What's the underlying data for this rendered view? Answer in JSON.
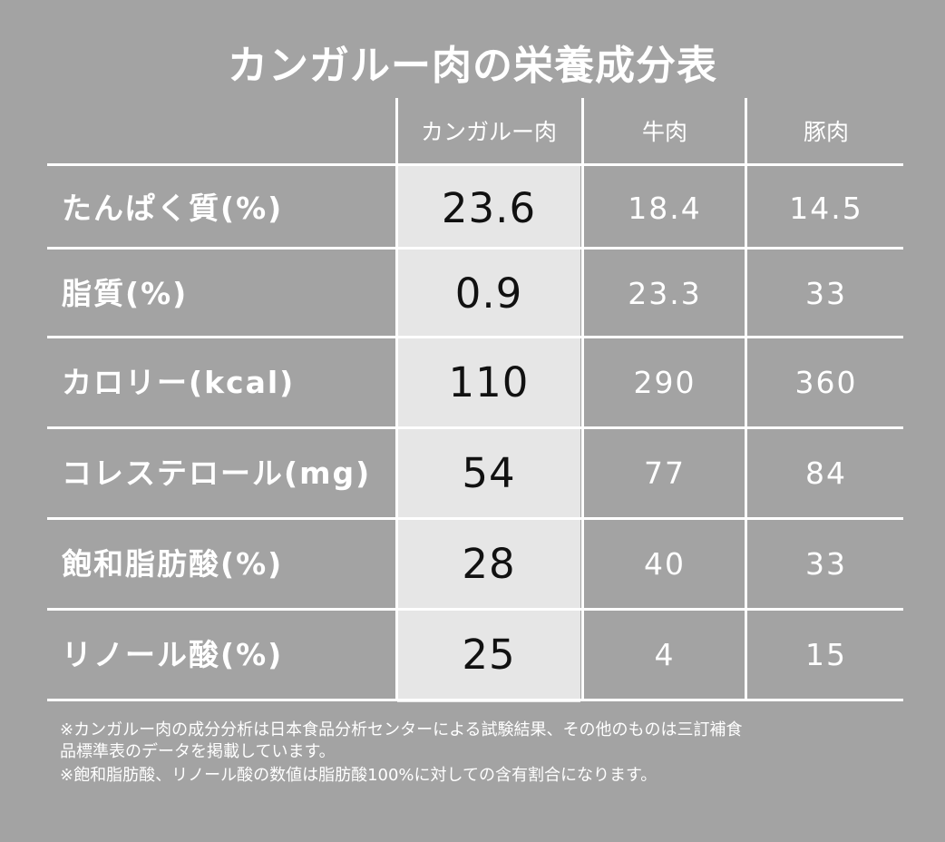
{
  "title": "カンガルー肉の栄養成分表",
  "columns": {
    "kangaroo": "カンガルー肉",
    "beef": "牛肉",
    "pork": "豚肉"
  },
  "rows": [
    {
      "label": "たんぱく質(%)",
      "kangaroo": "23.6",
      "beef": "18.4",
      "pork": "14.5"
    },
    {
      "label": "脂質(%)",
      "kangaroo": "0.9",
      "beef": "23.3",
      "pork": "33"
    },
    {
      "label": "カロリー(kcal)",
      "kangaroo": "110",
      "beef": "290",
      "pork": "360"
    },
    {
      "label": "コレステロール(mg)",
      "kangaroo": "54",
      "beef": "77",
      "pork": "84"
    },
    {
      "label": "飽和脂肪酸(%)",
      "kangaroo": "28",
      "beef": "40",
      "pork": "33"
    },
    {
      "label": "リノール酸(%)",
      "kangaroo": "25",
      "beef": "4",
      "pork": "15"
    }
  ],
  "notes": {
    "line1": "※カンガルー肉の成分分析は日本食品分析センターによる試験結果、その他のものは三訂補食",
    "line2": "品標準表のデータを掲載しています。",
    "line3": "※飽和脂肪酸、リノール酸の数値は脂肪酸100%に対しての含有割合になります。"
  },
  "colors": {
    "background": "#a3a3a3",
    "highlight": "#e6e6e6",
    "lines": "#ffffff"
  }
}
